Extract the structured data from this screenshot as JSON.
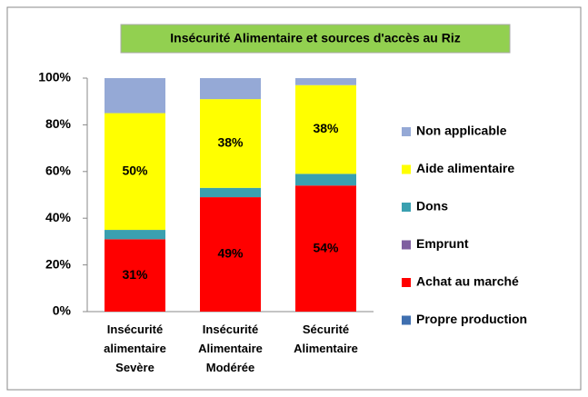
{
  "chart_data": {
    "type": "stacked_bar",
    "title": "Insécurité Alimentaire et sources d'accès au Riz",
    "categories": [
      "Insécurité alimentaire Sevère",
      "Insécurité Alimentaire Modérée",
      "Sécurité Alimentaire"
    ],
    "series": [
      {
        "name": "Propre production",
        "color": "#3f6fb0",
        "values": [
          0,
          0,
          0
        ]
      },
      {
        "name": "Achat au marché",
        "color": "#ff0000",
        "values": [
          31,
          49,
          54
        ],
        "value_labels": [
          "31%",
          "49%",
          "54%"
        ]
      },
      {
        "name": "Emprunt",
        "color": "#7f5fa0",
        "values": [
          0,
          0,
          0
        ]
      },
      {
        "name": "Dons",
        "color": "#3aa0b0",
        "values": [
          4,
          4,
          5
        ]
      },
      {
        "name": "Aide alimentaire",
        "color": "#ffff00",
        "values": [
          50,
          38,
          38
        ],
        "value_labels": [
          "50%",
          "38%",
          "38%"
        ]
      },
      {
        "name": "Non applicable",
        "color": "#95a9d6",
        "values": [
          15,
          9,
          3
        ]
      }
    ],
    "ylim": [
      0,
      100
    ],
    "yticks": [
      {
        "value": 0,
        "label": "0%"
      },
      {
        "value": 20,
        "label": "20%"
      },
      {
        "value": 40,
        "label": "40%"
      },
      {
        "value": 60,
        "label": "60%"
      },
      {
        "value": 80,
        "label": "80%"
      },
      {
        "value": 100,
        "label": "100%"
      }
    ],
    "legend": "right"
  }
}
